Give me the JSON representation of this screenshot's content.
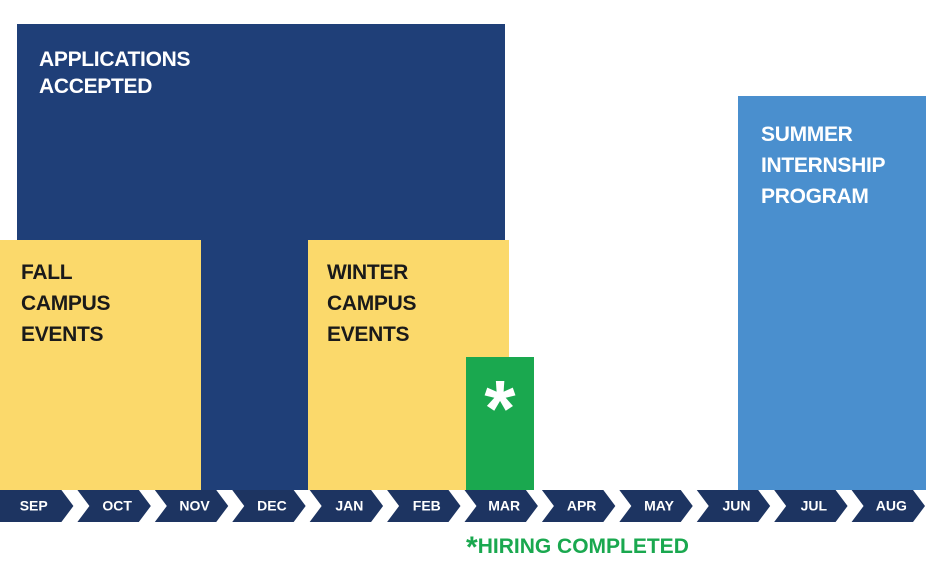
{
  "blocks": [
    {
      "lines": [
        "APPLICATIONS",
        "ACCEPTED"
      ]
    },
    {
      "lines": [
        "FALL",
        "CAMPUS",
        "EVENTS"
      ]
    },
    {
      "lines": [
        "WINTER",
        "CAMPUS",
        "EVENTS"
      ]
    },
    {
      "lines": [
        "SUMMER",
        "INTERNSHIP",
        "PROGRAM"
      ]
    }
  ],
  "hiring_marker": "*",
  "months": [
    "SEP",
    "OCT",
    "NOV",
    "DEC",
    "JAN",
    "FEB",
    "MAR",
    "APR",
    "MAY",
    "JUN",
    "JUL",
    "AUG"
  ],
  "footnote": {
    "marker": "*",
    "text": "HIRING COMPLETED"
  }
}
